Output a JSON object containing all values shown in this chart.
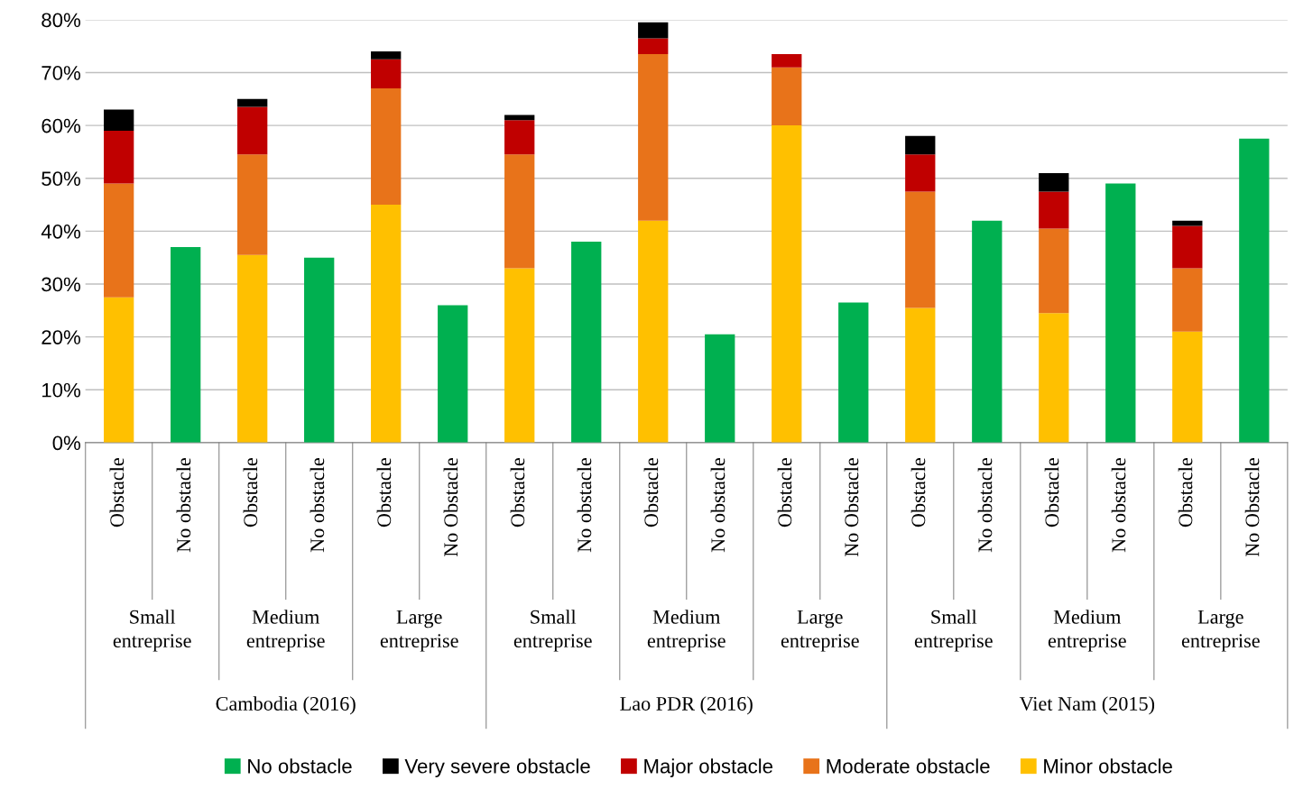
{
  "chart_data": {
    "type": "bar",
    "stacked": true,
    "categories": [
      "Obstacle",
      "No obstacle",
      "Obstacle",
      "No obstacle",
      "Obstacle",
      "No Obstacle",
      "Obstacle",
      "No obstacle",
      "Obstacle",
      "No obstacle",
      "Obstacle",
      "No Obstacle",
      "Obstacle",
      "No obstacle",
      "Obstacle",
      "No obstacle",
      "Obstacle",
      "No Obstacle"
    ],
    "series": [
      {
        "name": "No obstacle",
        "color": "#00b050",
        "values": [
          null,
          37,
          null,
          35,
          null,
          26,
          null,
          38,
          null,
          20.5,
          null,
          26.5,
          null,
          42,
          null,
          49,
          null,
          57.5
        ]
      },
      {
        "name": "Minor obstacle",
        "color": "#ffc000",
        "values": [
          27.5,
          null,
          35.5,
          null,
          45,
          null,
          33,
          null,
          42,
          null,
          60,
          null,
          25.5,
          null,
          24.5,
          null,
          21,
          null
        ]
      },
      {
        "name": "Moderate obstacle",
        "color": "#e8731a",
        "values": [
          21.5,
          null,
          19,
          null,
          22,
          null,
          21.5,
          null,
          31.5,
          null,
          11,
          null,
          22,
          null,
          16,
          null,
          12,
          null
        ]
      },
      {
        "name": "Major obstacle",
        "color": "#c00000",
        "values": [
          10,
          null,
          9,
          null,
          5.5,
          null,
          6.5,
          null,
          3,
          null,
          2.5,
          null,
          7,
          null,
          7,
          null,
          8,
          null
        ]
      },
      {
        "name": "Very severe obstacle",
        "color": "#000000",
        "values": [
          4,
          null,
          1.5,
          null,
          1.5,
          null,
          1,
          null,
          3,
          null,
          null,
          null,
          3.5,
          null,
          3.5,
          null,
          1,
          null
        ]
      }
    ],
    "annotations": [
      "Small\nentreprise",
      "Medium\nentreprise",
      "Large\nentreprise",
      "Small\nentreprise",
      "Medium\nentreprise",
      "Large\nentreprise",
      "Small\nentreprise",
      "Medium\nentreprise",
      "Large\nentreprise",
      "Cambodia (2016)",
      "Lao PDR (2016)",
      "Viet Nam (2015)"
    ],
    "ylim": [
      0,
      80
    ],
    "yticks": [
      {
        "value": 0,
        "label": "0%"
      },
      {
        "value": 10,
        "label": "10%"
      },
      {
        "value": 20,
        "label": "20%"
      },
      {
        "value": 30,
        "label": "30%"
      },
      {
        "value": 40,
        "label": "40%"
      },
      {
        "value": 50,
        "label": "50%"
      },
      {
        "value": 60,
        "label": "60%"
      },
      {
        "value": 70,
        "label": "70%"
      },
      {
        "value": 80,
        "label": "80%"
      }
    ],
    "grid": "y",
    "legend": "bottom"
  }
}
